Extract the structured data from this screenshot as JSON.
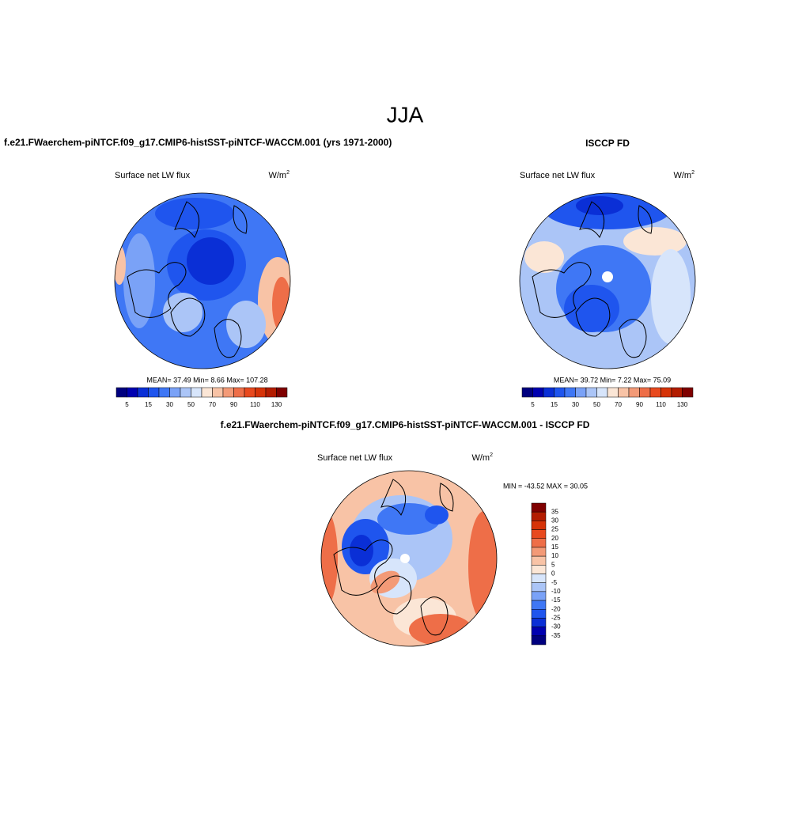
{
  "title": "JJA",
  "panels": [
    {
      "heading": "f.e21.FWaerchem-piNTCF.f09_g17.CMIP6-histSST-piNTCF-WACCM.001 (yrs 1971-2000)",
      "subtitle": "Surface net LW flux",
      "units": "W/m",
      "units_exponent": "2",
      "stats": "MEAN=  37.49  Min=   8.66  Max= 107.28",
      "colorbar_labels": [
        "5",
        "15",
        "30",
        "50",
        "70",
        "90",
        "110",
        "130"
      ]
    },
    {
      "heading": "ISCCP FD",
      "subtitle": "Surface net LW flux",
      "units": "W/m",
      "units_exponent": "2",
      "stats": "MEAN=  39.72  Min=   7.22  Max=  75.09",
      "colorbar_labels": [
        "5",
        "15",
        "30",
        "50",
        "70",
        "90",
        "110",
        "130"
      ]
    }
  ],
  "difference": {
    "heading": "f.e21.FWaerchem-piNTCF.f09_g17.CMIP6-histSST-piNTCF-WACCM.001 - ISCCP FD",
    "subtitle": "Surface net LW flux",
    "units": "W/m",
    "units_exponent": "2",
    "stats": "MIN = -43.52 MAX =  30.05",
    "colorbar_labels": [
      "35",
      "30",
      "25",
      "20",
      "15",
      "10",
      "5",
      "0",
      "-5",
      "-10",
      "-15",
      "-20",
      "-25",
      "-30",
      "-35"
    ]
  }
}
